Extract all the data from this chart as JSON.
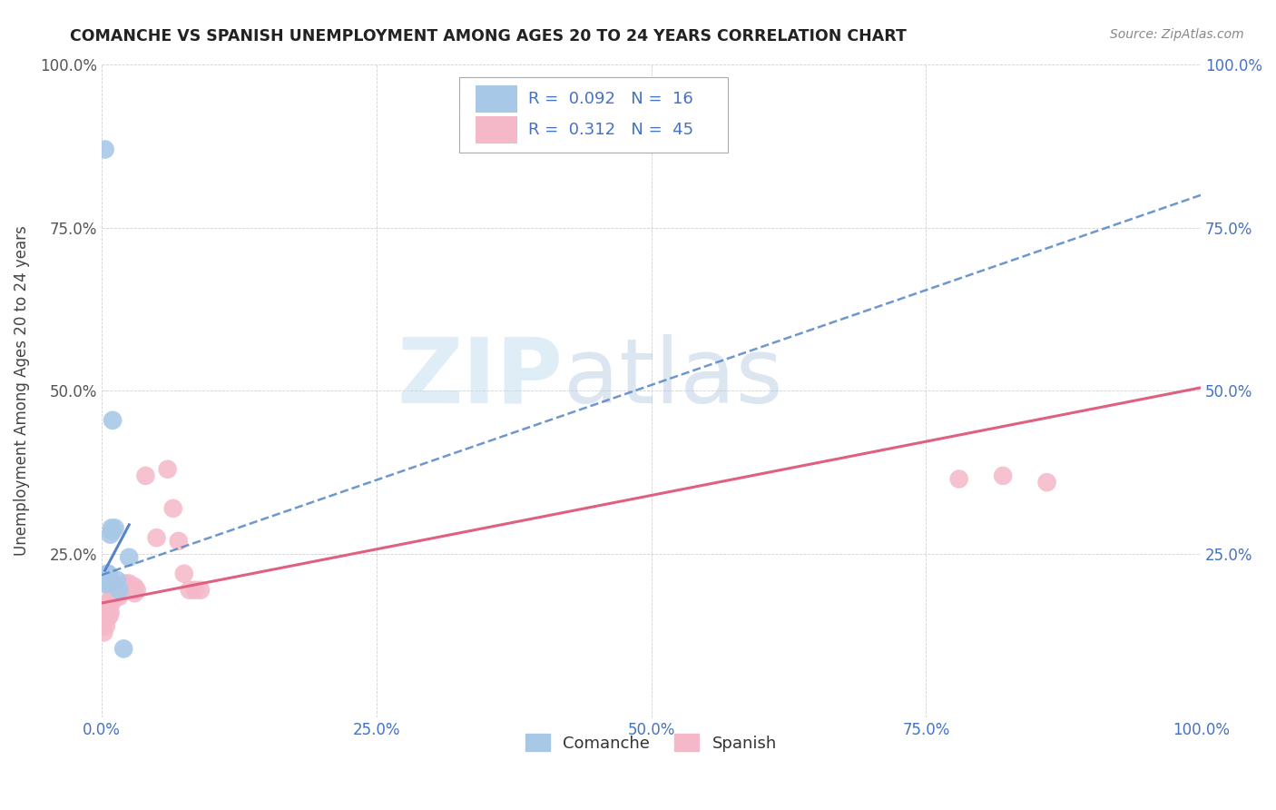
{
  "title": "COMANCHE VS SPANISH UNEMPLOYMENT AMONG AGES 20 TO 24 YEARS CORRELATION CHART",
  "source": "Source: ZipAtlas.com",
  "ylabel": "Unemployment Among Ages 20 to 24 years",
  "xlim": [
    0,
    1.0
  ],
  "ylim": [
    0,
    1.0
  ],
  "xticks": [
    0.0,
    0.25,
    0.5,
    0.75,
    1.0
  ],
  "yticks": [
    0.0,
    0.25,
    0.5,
    0.75,
    1.0
  ],
  "xticklabels": [
    "0.0%",
    "25.0%",
    "50.0%",
    "75.0%",
    "100.0%"
  ],
  "yticklabels_left": [
    "",
    "25.0%",
    "50.0%",
    "75.0%",
    "100.0%"
  ],
  "yticklabels_right": [
    "",
    "25.0%",
    "50.0%",
    "75.0%",
    "100.0%"
  ],
  "comanche_color": "#a8c8e8",
  "spanish_color": "#f5b8c8",
  "comanche_line_color": "#5585c5",
  "spanish_line_color": "#e06080",
  "comanche_R": 0.092,
  "comanche_N": 16,
  "spanish_R": 0.312,
  "spanish_N": 45,
  "watermark_zip": "ZIP",
  "watermark_atlas": "atlas",
  "comanche_line_x0": 0.0,
  "comanche_line_y0": 0.218,
  "comanche_line_x1": 1.0,
  "comanche_line_y1": 0.8,
  "spanish_line_x0": 0.0,
  "spanish_line_y0": 0.175,
  "spanish_line_x1": 1.0,
  "spanish_line_y1": 0.505,
  "comanche_x": [
    0.003,
    0.003,
    0.004,
    0.005,
    0.006,
    0.006,
    0.007,
    0.008,
    0.009,
    0.01,
    0.01,
    0.012,
    0.014,
    0.016,
    0.02,
    0.025
  ],
  "comanche_y": [
    0.87,
    0.205,
    0.21,
    0.22,
    0.205,
    0.22,
    0.215,
    0.28,
    0.29,
    0.455,
    0.285,
    0.29,
    0.21,
    0.195,
    0.105,
    0.245
  ],
  "spanish_x": [
    0.001,
    0.002,
    0.003,
    0.003,
    0.004,
    0.004,
    0.005,
    0.005,
    0.005,
    0.006,
    0.006,
    0.007,
    0.007,
    0.008,
    0.009,
    0.009,
    0.01,
    0.01,
    0.011,
    0.012,
    0.013,
    0.014,
    0.015,
    0.016,
    0.018,
    0.02,
    0.02,
    0.022,
    0.024,
    0.025,
    0.03,
    0.03,
    0.032,
    0.04,
    0.05,
    0.06,
    0.065,
    0.07,
    0.075,
    0.08,
    0.085,
    0.09,
    0.78,
    0.82,
    0.86
  ],
  "spanish_y": [
    0.14,
    0.13,
    0.155,
    0.17,
    0.14,
    0.155,
    0.16,
    0.155,
    0.17,
    0.155,
    0.175,
    0.155,
    0.175,
    0.16,
    0.175,
    0.185,
    0.185,
    0.195,
    0.185,
    0.19,
    0.185,
    0.19,
    0.2,
    0.185,
    0.195,
    0.2,
    0.195,
    0.205,
    0.2,
    0.205,
    0.19,
    0.2,
    0.195,
    0.37,
    0.275,
    0.38,
    0.32,
    0.27,
    0.22,
    0.195,
    0.195,
    0.195,
    0.365,
    0.37,
    0.36
  ]
}
